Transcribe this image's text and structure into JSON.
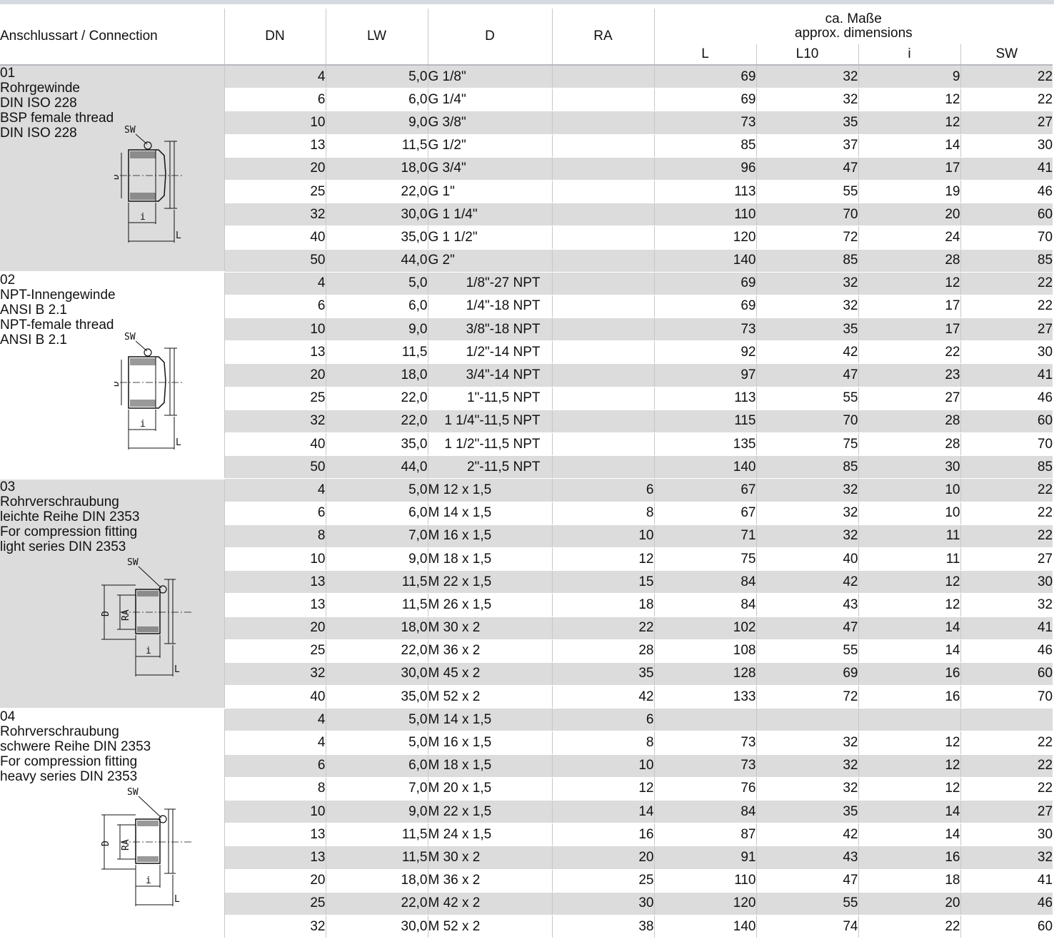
{
  "header": {
    "connection": "Anschlussart / Connection",
    "dn": "DN",
    "lw": "LW",
    "d": "D",
    "ra": "RA",
    "dims_line1": "ca. Maße",
    "dims_line2": "approx. dimensions",
    "l": "L",
    "l10": "L10",
    "i": "i",
    "sw": "SW"
  },
  "drawing_labels": {
    "sw": "SW",
    "d": "D",
    "ra": "RA",
    "i": "i",
    "l": "L"
  },
  "sections": [
    {
      "lines": [
        "01",
        "Rohrgewinde",
        "DIN ISO 228",
        "BSP female thread",
        "DIN ISO 228"
      ],
      "drawing": "thread-fitting-drawing",
      "rows": [
        {
          "dn": "4",
          "lw": "5,0",
          "d": "G   1/8\"",
          "ra": "",
          "l": "69",
          "l10": "32",
          "i": "9",
          "sw": "22"
        },
        {
          "dn": "6",
          "lw": "6,0",
          "d": "G   1/4\"",
          "ra": "",
          "l": "69",
          "l10": "32",
          "i": "12",
          "sw": "22"
        },
        {
          "dn": "10",
          "lw": "9,0",
          "d": "G   3/8\"",
          "ra": "",
          "l": "73",
          "l10": "35",
          "i": "12",
          "sw": "27"
        },
        {
          "dn": "13",
          "lw": "11,5",
          "d": "G   1/2\"",
          "ra": "",
          "l": "85",
          "l10": "37",
          "i": "14",
          "sw": "30"
        },
        {
          "dn": "20",
          "lw": "18,0",
          "d": "G   3/4\"",
          "ra": "",
          "l": "96",
          "l10": "47",
          "i": "17",
          "sw": "41"
        },
        {
          "dn": "25",
          "lw": "22,0",
          "d": "G 1\"",
          "ra": "",
          "l": "113",
          "l10": "55",
          "i": "19",
          "sw": "46"
        },
        {
          "dn": "32",
          "lw": "30,0",
          "d": "G 1 1/4\"",
          "ra": "",
          "l": "110",
          "l10": "70",
          "i": "20",
          "sw": "60"
        },
        {
          "dn": "40",
          "lw": "35,0",
          "d": "G 1 1/2\"",
          "ra": "",
          "l": "120",
          "l10": "72",
          "i": "24",
          "sw": "70"
        },
        {
          "dn": "50",
          "lw": "44,0",
          "d": "G 2\"",
          "ra": "",
          "l": "140",
          "l10": "85",
          "i": "28",
          "sw": "85"
        }
      ]
    },
    {
      "lines": [
        "02",
        "NPT-Innengewinde",
        "ANSI B 2.1",
        "NPT-female thread",
        "ANSI B 2.1"
      ],
      "drawing": "thread-fitting-drawing",
      "rows": [
        {
          "dn": "4",
          "lw": "5,0",
          "d": "1/8\"-27 NPT",
          "ra": "",
          "l": "69",
          "l10": "32",
          "i": "12",
          "sw": "22"
        },
        {
          "dn": "6",
          "lw": "6,0",
          "d": "1/4\"-18 NPT",
          "ra": "",
          "l": "69",
          "l10": "32",
          "i": "17",
          "sw": "22"
        },
        {
          "dn": "10",
          "lw": "9,0",
          "d": "3/8\"-18 NPT",
          "ra": "",
          "l": "73",
          "l10": "35",
          "i": "17",
          "sw": "27"
        },
        {
          "dn": "13",
          "lw": "11,5",
          "d": "1/2\"-14 NPT",
          "ra": "",
          "l": "92",
          "l10": "42",
          "i": "22",
          "sw": "30"
        },
        {
          "dn": "20",
          "lw": "18,0",
          "d": "3/4\"-14 NPT",
          "ra": "",
          "l": "97",
          "l10": "47",
          "i": "23",
          "sw": "41"
        },
        {
          "dn": "25",
          "lw": "22,0",
          "d": "1\"-11,5 NPT",
          "ra": "",
          "l": "113",
          "l10": "55",
          "i": "27",
          "sw": "46"
        },
        {
          "dn": "32",
          "lw": "22,0",
          "d": "1 1/4\"-11,5 NPT",
          "ra": "",
          "l": "115",
          "l10": "70",
          "i": "28",
          "sw": "60"
        },
        {
          "dn": "40",
          "lw": "35,0",
          "d": "1 1/2\"-11,5 NPT",
          "ra": "",
          "l": "135",
          "l10": "75",
          "i": "28",
          "sw": "70"
        },
        {
          "dn": "50",
          "lw": "44,0",
          "d": "2\"-11,5 NPT",
          "ra": "",
          "l": "140",
          "l10": "85",
          "i": "30",
          "sw": "85"
        }
      ]
    },
    {
      "lines": [
        "03",
        "Rohrverschraubung",
        "leichte Reihe DIN 2353",
        "For compression fitting",
        "light series DIN 2353"
      ],
      "drawing": "compression-fitting-drawing",
      "rows": [
        {
          "dn": "4",
          "lw": "5,0",
          "d": "M 12 x 1,5",
          "ra": "6",
          "l": "67",
          "l10": "32",
          "i": "10",
          "sw": "22"
        },
        {
          "dn": "6",
          "lw": "6,0",
          "d": "M 14 x 1,5",
          "ra": "8",
          "l": "67",
          "l10": "32",
          "i": "10",
          "sw": "22"
        },
        {
          "dn": "8",
          "lw": "7,0",
          "d": "M 16 x 1,5",
          "ra": "10",
          "l": "71",
          "l10": "32",
          "i": "11",
          "sw": "22"
        },
        {
          "dn": "10",
          "lw": "9,0",
          "d": "M 18 x 1,5",
          "ra": "12",
          "l": "75",
          "l10": "40",
          "i": "11",
          "sw": "27"
        },
        {
          "dn": "13",
          "lw": "11,5",
          "d": "M 22 x 1,5",
          "ra": "15",
          "l": "84",
          "l10": "42",
          "i": "12",
          "sw": "30"
        },
        {
          "dn": "13",
          "lw": "11,5",
          "d": "M 26 x 1,5",
          "ra": "18",
          "l": "84",
          "l10": "43",
          "i": "12",
          "sw": "32"
        },
        {
          "dn": "20",
          "lw": "18,0",
          "d": "M 30 x 2",
          "ra": "22",
          "l": "102",
          "l10": "47",
          "i": "14",
          "sw": "41"
        },
        {
          "dn": "25",
          "lw": "22,0",
          "d": "M 36 x 2",
          "ra": "28",
          "l": "108",
          "l10": "55",
          "i": "14",
          "sw": "46"
        },
        {
          "dn": "32",
          "lw": "30,0",
          "d": "M 45 x 2",
          "ra": "35",
          "l": "128",
          "l10": "69",
          "i": "16",
          "sw": "60"
        },
        {
          "dn": "40",
          "lw": "35,0",
          "d": "M 52 x 2",
          "ra": "42",
          "l": "133",
          "l10": "72",
          "i": "16",
          "sw": "70"
        }
      ]
    },
    {
      "lines": [
        "04",
        "Rohrverschraubung",
        "schwere Reihe DIN 2353",
        "For compression fitting",
        "heavy series DIN 2353"
      ],
      "drawing": "compression-fitting-drawing",
      "rows": [
        {
          "dn": "4",
          "lw": "5,0",
          "d": "M 14 x 1,5",
          "ra": "6",
          "l": "",
          "l10": "",
          "i": "",
          "sw": ""
        },
        {
          "dn": "4",
          "lw": "5,0",
          "d": "M 16 x 1,5",
          "ra": "8",
          "l": "73",
          "l10": "32",
          "i": "12",
          "sw": "22"
        },
        {
          "dn": "6",
          "lw": "6,0",
          "d": "M 18 x 1,5",
          "ra": "10",
          "l": "73",
          "l10": "32",
          "i": "12",
          "sw": "22"
        },
        {
          "dn": "8",
          "lw": "7,0",
          "d": "M 20 x 1,5",
          "ra": "12",
          "l": "76",
          "l10": "32",
          "i": "12",
          "sw": "22"
        },
        {
          "dn": "10",
          "lw": "9,0",
          "d": "M 22 x 1,5",
          "ra": "14",
          "l": "84",
          "l10": "35",
          "i": "14",
          "sw": "27"
        },
        {
          "dn": "13",
          "lw": "11,5",
          "d": "M 24 x 1,5",
          "ra": "16",
          "l": "87",
          "l10": "42",
          "i": "14",
          "sw": "30"
        },
        {
          "dn": "13",
          "lw": "11,5",
          "d": "M 30 x 2",
          "ra": "20",
          "l": "91",
          "l10": "43",
          "i": "16",
          "sw": "32"
        },
        {
          "dn": "20",
          "lw": "18,0",
          "d": "M 36 x 2",
          "ra": "25",
          "l": "110",
          "l10": "47",
          "i": "18",
          "sw": "41"
        },
        {
          "dn": "25",
          "lw": "22,0",
          "d": "M 42 x 2",
          "ra": "30",
          "l": "120",
          "l10": "55",
          "i": "20",
          "sw": "46"
        },
        {
          "dn": "32",
          "lw": "30,0",
          "d": "M 52 x 2",
          "ra": "38",
          "l": "140",
          "l10": "74",
          "i": "22",
          "sw": "60"
        }
      ]
    }
  ],
  "colors": {
    "row_shade": "#dcdcdc",
    "header_rule": "#d5d9e0",
    "line": "#c4c8cc"
  }
}
